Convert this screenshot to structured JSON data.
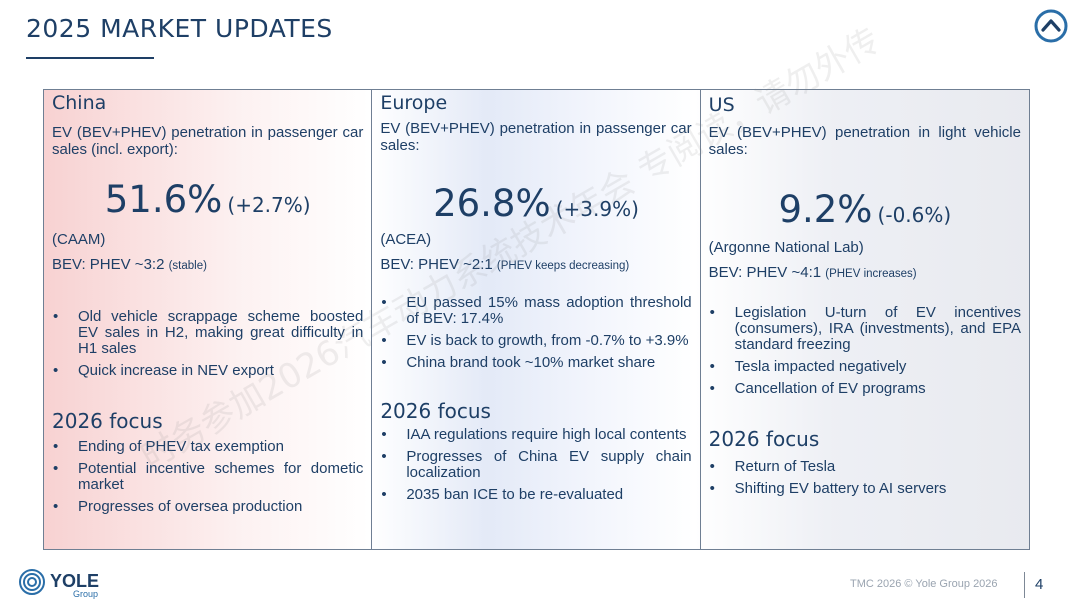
{
  "header": {
    "title": "2025 MARKET UPDATES",
    "icon": "chevron-up-circle-icon"
  },
  "watermark_text": "时务参加2026汽车动力系统技术年会 专阅读，请勿外传",
  "columns": [
    {
      "region": "China",
      "desc": "EV (BEV+PHEV) penetration in passenger car sales (incl. export):",
      "pct": "51.6%",
      "chg": "(+2.7%)",
      "source": "(CAAM)",
      "bev_label": "BEV: PHEV ~3:2",
      "bev_note": "(stable)",
      "bullets": [
        "Old vehicle scrappage scheme boosted EV sales in H2, making great difficulty in H1 sales",
        "Quick increase in NEV export"
      ],
      "focus_title": "2026 focus",
      "focus_bullets": [
        "Ending of PHEV tax exemption",
        "Potential incentive schemes for dometic market",
        "Progresses of oversea production"
      ]
    },
    {
      "region": "Europe",
      "desc": "EV (BEV+PHEV) penetration in passenger car sales:",
      "pct": "26.8%",
      "chg": "(+3.9%)",
      "source": "(ACEA)",
      "bev_label": "BEV: PHEV ~2:1",
      "bev_note": "(PHEV keeps decreasing)",
      "bullets": [
        "EU passed 15% mass adoption threshold of BEV: 17.4%",
        "EV is back to growth, from -0.7% to +3.9%",
        "China brand took ~10% market share"
      ],
      "focus_title": "2026 focus",
      "focus_bullets": [
        "IAA regulations require high local contents",
        "Progresses of China EV supply chain localization",
        "2035 ban ICE to be re-evaluated"
      ]
    },
    {
      "region": "US",
      "desc": "EV (BEV+PHEV) penetration in light vehicle sales:",
      "pct": "9.2%",
      "chg": "(-0.6%)",
      "source": "(Argonne National Lab)",
      "bev_label": "BEV: PHEV ~4:1",
      "bev_note": "(PHEV increases)",
      "bullets": [
        "Legislation U-turn of EV incentives (consumers), IRA (investments), and EPA standard freezing",
        "Tesla impacted negatively",
        "Cancellation of EV programs"
      ],
      "focus_title": "2026 focus",
      "focus_bullets": [
        "Return of Tesla",
        "Shifting EV battery to AI servers"
      ]
    }
  ],
  "footer": {
    "logo_name": "YOLE",
    "logo_sub": "Group",
    "text": "TMC 2026  © Yole Group 2026",
    "page": "4"
  },
  "colors": {
    "navy": "#1e3f66",
    "accent": "#2a6ea8"
  }
}
